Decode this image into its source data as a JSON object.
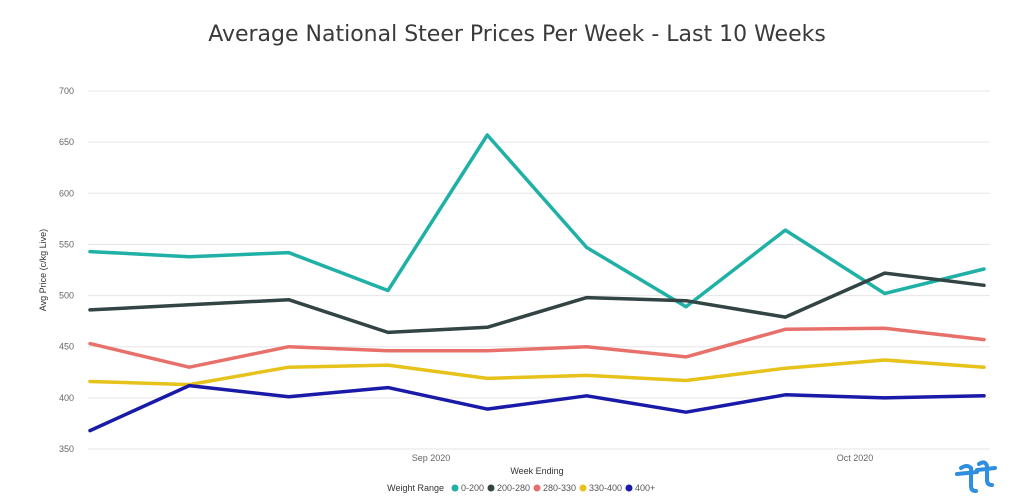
{
  "chart_data": {
    "type": "line",
    "title": "Average National Steer Prices Per Week - Last 10 Weeks",
    "xlabel": "Week Ending",
    "ylabel": "Avg Price (c/kg Live)",
    "ylim": [
      350,
      700
    ],
    "yticks": [
      "700",
      "650",
      "600",
      "550",
      "500",
      "450",
      "400",
      "350"
    ],
    "xtick_labels": [
      "Sep 2020",
      "Oct 2020"
    ],
    "x_points": 10,
    "grid": true,
    "legend_position": "bottom",
    "legend_title": "Weight Range",
    "series": [
      {
        "name": "0-200",
        "color": "#1fb0a6",
        "values": [
          543,
          538,
          542,
          505,
          657,
          547,
          489,
          564,
          502,
          526
        ]
      },
      {
        "name": "200-280",
        "color": "#334444",
        "values": [
          486,
          491,
          496,
          464,
          469,
          498,
          495,
          479,
          522,
          510
        ]
      },
      {
        "name": "280-330",
        "color": "#e8706a",
        "values": [
          453,
          430,
          450,
          446,
          446,
          450,
          440,
          467,
          468,
          457
        ]
      },
      {
        "name": "330-400",
        "color": "#e6c21a",
        "values": [
          416,
          413,
          430,
          432,
          419,
          422,
          417,
          429,
          437,
          430
        ]
      },
      {
        "name": "400+",
        "color": "#1a1aa8",
        "values": [
          368,
          412,
          401,
          410,
          389,
          402,
          386,
          403,
          400,
          402
        ]
      }
    ]
  },
  "logo": {
    "name": "brand-logo-icon",
    "color": "#2e8ee0"
  }
}
